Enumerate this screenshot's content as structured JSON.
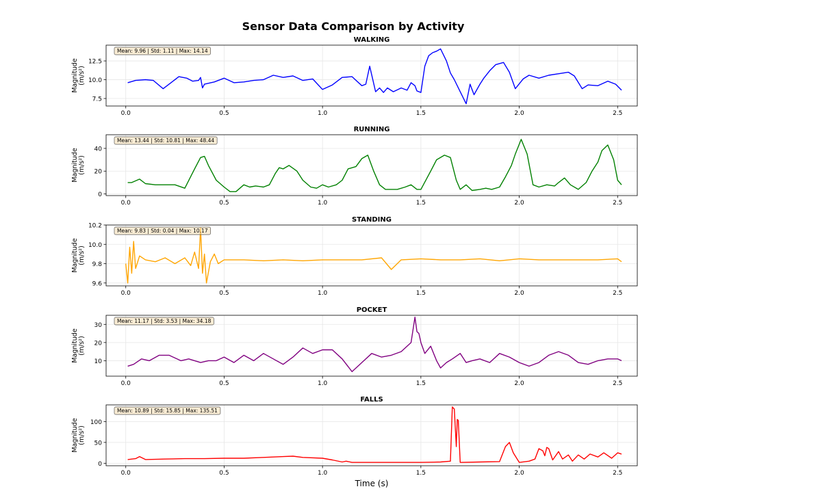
{
  "figure": {
    "title": "Sensor Data Comparison by Activity",
    "xlabel": "Time (s)",
    "ylabel": "Magnitude\n(m/s²)"
  },
  "chart_data": [
    {
      "type": "line",
      "title": "WALKING",
      "color": "#0000ff",
      "stats": "Mean: 9.96 | Std: 1.11 | Max: 14.14",
      "xlim": [
        -0.1,
        2.6
      ],
      "ylim": [
        6.5,
        14.6
      ],
      "yticks": [
        7.5,
        10.0,
        12.5
      ],
      "xticks": [
        0.0,
        0.5,
        1.0,
        1.5,
        2.0,
        2.5
      ],
      "x": [
        0.01,
        0.05,
        0.1,
        0.14,
        0.19,
        0.23,
        0.27,
        0.31,
        0.34,
        0.37,
        0.38,
        0.39,
        0.4,
        0.45,
        0.5,
        0.55,
        0.6,
        0.65,
        0.7,
        0.75,
        0.8,
        0.85,
        0.9,
        0.95,
        1.0,
        1.05,
        1.1,
        1.15,
        1.2,
        1.22,
        1.24,
        1.27,
        1.29,
        1.31,
        1.33,
        1.36,
        1.4,
        1.43,
        1.45,
        1.47,
        1.48,
        1.5,
        1.52,
        1.54,
        1.56,
        1.58,
        1.6,
        1.63,
        1.65,
        1.67,
        1.7,
        1.73,
        1.75,
        1.77,
        1.8,
        1.82,
        1.85,
        1.88,
        1.92,
        1.95,
        1.98,
        2.02,
        2.05,
        2.1,
        2.15,
        2.2,
        2.25,
        2.28,
        2.32,
        2.35,
        2.4,
        2.45,
        2.49,
        2.52
      ],
      "y": [
        9.6,
        9.9,
        10.0,
        9.9,
        8.8,
        9.6,
        10.4,
        10.2,
        9.8,
        9.9,
        10.3,
        8.9,
        9.4,
        9.7,
        10.2,
        9.6,
        9.7,
        9.9,
        10.0,
        10.6,
        10.3,
        10.5,
        9.9,
        10.1,
        8.7,
        9.3,
        10.3,
        10.4,
        9.2,
        9.4,
        11.8,
        8.4,
        8.9,
        8.3,
        8.9,
        8.4,
        8.9,
        8.6,
        9.6,
        9.2,
        8.5,
        8.3,
        11.8,
        13.2,
        13.6,
        13.8,
        14.1,
        12.5,
        10.9,
        10.0,
        8.4,
        6.8,
        9.4,
        8.0,
        9.4,
        10.2,
        11.2,
        12.0,
        12.3,
        11.0,
        8.8,
        10.1,
        10.6,
        10.2,
        10.6,
        10.8,
        11.0,
        10.5,
        8.8,
        9.3,
        9.2,
        9.8,
        9.4,
        8.6
      ]
    },
    {
      "type": "line",
      "title": "RUNNING",
      "color": "#008000",
      "stats": "Mean: 13.44 | Std: 10.81 | Max: 48.44",
      "xlim": [
        -0.1,
        2.6
      ],
      "ylim": [
        -1.5,
        52
      ],
      "yticks": [
        0,
        20,
        40
      ],
      "xticks": [
        0.0,
        0.5,
        1.0,
        1.5,
        2.0,
        2.5
      ],
      "x": [
        0.01,
        0.03,
        0.07,
        0.1,
        0.15,
        0.2,
        0.25,
        0.3,
        0.35,
        0.38,
        0.4,
        0.42,
        0.46,
        0.5,
        0.53,
        0.56,
        0.6,
        0.63,
        0.66,
        0.7,
        0.73,
        0.76,
        0.78,
        0.8,
        0.83,
        0.87,
        0.9,
        0.94,
        0.97,
        1.0,
        1.03,
        1.07,
        1.1,
        1.13,
        1.17,
        1.2,
        1.23,
        1.26,
        1.29,
        1.32,
        1.35,
        1.38,
        1.42,
        1.45,
        1.48,
        1.5,
        1.55,
        1.58,
        1.62,
        1.65,
        1.68,
        1.7,
        1.73,
        1.76,
        1.8,
        1.83,
        1.86,
        1.9,
        1.93,
        1.96,
        1.98,
        2.01,
        2.04,
        2.07,
        2.1,
        2.14,
        2.18,
        2.2,
        2.23,
        2.26,
        2.3,
        2.34,
        2.37,
        2.4,
        2.42,
        2.45,
        2.48,
        2.5,
        2.52
      ],
      "y": [
        10,
        10,
        13,
        9,
        8,
        8,
        8,
        5,
        22,
        32,
        33,
        25,
        12,
        6,
        2,
        2,
        8,
        6,
        7,
        6,
        8,
        18,
        23,
        22,
        25,
        20,
        12,
        6,
        5,
        8,
        6,
        8,
        12,
        22,
        24,
        31,
        34,
        20,
        8,
        4,
        4,
        4,
        6,
        8,
        4,
        4,
        20,
        30,
        34,
        32,
        12,
        4,
        8,
        3,
        4,
        5,
        4,
        6,
        15,
        25,
        35,
        48,
        35,
        8,
        6,
        8,
        7,
        10,
        14,
        8,
        4,
        10,
        20,
        28,
        38,
        43,
        30,
        12,
        8
      ]
    },
    {
      "type": "line",
      "title": "STANDING",
      "color": "#ffa500",
      "stats": "Mean: 9.83 | Std: 0.04 | Max: 10.17",
      "xlim": [
        -0.1,
        2.6
      ],
      "ylim": [
        9.57,
        10.2
      ],
      "yticks": [
        9.6,
        9.8,
        10.0,
        10.2
      ],
      "xticks": [
        0.0,
        0.5,
        1.0,
        1.5,
        2.0,
        2.5
      ],
      "x": [
        0.0,
        0.01,
        0.02,
        0.03,
        0.04,
        0.05,
        0.07,
        0.1,
        0.15,
        0.2,
        0.25,
        0.3,
        0.33,
        0.35,
        0.37,
        0.38,
        0.39,
        0.4,
        0.41,
        0.43,
        0.45,
        0.47,
        0.5,
        0.6,
        0.7,
        0.8,
        0.9,
        1.0,
        1.1,
        1.2,
        1.3,
        1.35,
        1.4,
        1.5,
        1.6,
        1.7,
        1.8,
        1.9,
        2.0,
        2.1,
        2.2,
        2.3,
        2.4,
        2.5,
        2.52
      ],
      "y": [
        9.8,
        9.6,
        9.97,
        9.7,
        10.03,
        9.75,
        9.88,
        9.84,
        9.82,
        9.86,
        9.8,
        9.86,
        9.78,
        9.92,
        9.75,
        10.17,
        9.7,
        9.9,
        9.6,
        9.82,
        9.9,
        9.8,
        9.84,
        9.84,
        9.83,
        9.84,
        9.83,
        9.84,
        9.84,
        9.84,
        9.86,
        9.74,
        9.84,
        9.85,
        9.84,
        9.84,
        9.85,
        9.83,
        9.85,
        9.84,
        9.84,
        9.84,
        9.84,
        9.85,
        9.82
      ]
    },
    {
      "type": "line",
      "title": "POCKET",
      "color": "#800080",
      "stats": "Mean: 11.17 | Std: 3.53 | Max: 34.18",
      "xlim": [
        -0.1,
        2.6
      ],
      "ylim": [
        1.5,
        35
      ],
      "yticks": [
        10,
        20,
        30
      ],
      "xticks": [
        0.0,
        0.5,
        1.0,
        1.5,
        2.0,
        2.5
      ],
      "x": [
        0.01,
        0.04,
        0.08,
        0.12,
        0.17,
        0.22,
        0.28,
        0.32,
        0.38,
        0.42,
        0.46,
        0.5,
        0.55,
        0.6,
        0.65,
        0.7,
        0.75,
        0.8,
        0.85,
        0.9,
        0.95,
        1.0,
        1.05,
        1.1,
        1.15,
        1.2,
        1.25,
        1.3,
        1.35,
        1.4,
        1.45,
        1.47,
        1.48,
        1.49,
        1.5,
        1.52,
        1.55,
        1.58,
        1.6,
        1.63,
        1.66,
        1.7,
        1.73,
        1.76,
        1.8,
        1.85,
        1.9,
        1.95,
        2.0,
        2.05,
        2.1,
        2.15,
        2.2,
        2.25,
        2.3,
        2.35,
        2.4,
        2.45,
        2.5,
        2.52
      ],
      "y": [
        7,
        8,
        11,
        10,
        13,
        13,
        10,
        11,
        9,
        10,
        10,
        12,
        9,
        13,
        10,
        14,
        11,
        8,
        12,
        17,
        14,
        16,
        16,
        11,
        4,
        9,
        14,
        12,
        13,
        15,
        20,
        34,
        26,
        25,
        20,
        14,
        18,
        10,
        6,
        9,
        11,
        14,
        9,
        10,
        11,
        9,
        14,
        12,
        9,
        7,
        9,
        13,
        15,
        13,
        9,
        8,
        10,
        11,
        11,
        10
      ]
    },
    {
      "type": "line",
      "title": "FALLS",
      "color": "#ff0000",
      "stats": "Mean: 10.89 | Std: 15.85 | Max: 135.51",
      "xlim": [
        -0.1,
        2.6
      ],
      "ylim": [
        -6,
        140
      ],
      "yticks": [
        0,
        50,
        100
      ],
      "xticks": [
        0.0,
        0.5,
        1.0,
        1.5,
        2.0,
        2.5
      ],
      "x": [
        0.01,
        0.05,
        0.07,
        0.1,
        0.2,
        0.3,
        0.4,
        0.5,
        0.6,
        0.7,
        0.8,
        0.85,
        0.9,
        1.0,
        1.05,
        1.1,
        1.12,
        1.15,
        1.2,
        1.3,
        1.4,
        1.5,
        1.6,
        1.65,
        1.66,
        1.67,
        1.68,
        1.685,
        1.69,
        1.7,
        1.71,
        1.8,
        1.9,
        1.93,
        1.95,
        1.97,
        2.0,
        2.05,
        2.08,
        2.1,
        2.12,
        2.13,
        2.14,
        2.15,
        2.17,
        2.2,
        2.22,
        2.25,
        2.27,
        2.3,
        2.33,
        2.36,
        2.4,
        2.43,
        2.47,
        2.5,
        2.52
      ],
      "y": [
        9,
        11,
        16,
        9,
        10,
        11,
        11,
        12,
        12,
        14,
        16,
        17,
        14,
        12,
        8,
        3,
        5,
        2,
        2,
        2,
        2,
        2,
        3,
        5,
        135,
        130,
        40,
        105,
        103,
        2,
        2,
        3,
        4,
        40,
        50,
        25,
        2,
        5,
        10,
        35,
        30,
        18,
        38,
        35,
        8,
        28,
        10,
        20,
        5,
        20,
        10,
        22,
        15,
        25,
        12,
        25,
        22
      ]
    }
  ]
}
